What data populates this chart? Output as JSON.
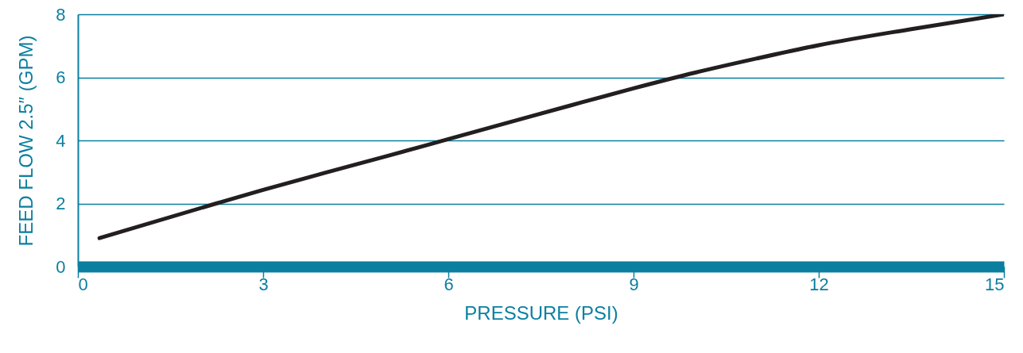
{
  "chart_data": {
    "type": "line",
    "xlabel": "PRESSURE (PSI)",
    "ylabel": "FEED FLOW 2.5″ (GPM)",
    "x": [
      0.35,
      2.24,
      3,
      4,
      5,
      6,
      7,
      8,
      9,
      10,
      11,
      12,
      13.5,
      15
    ],
    "series": [
      {
        "color": "#231f20",
        "values": [
          0.9,
          2,
          2.43,
          2.97,
          3.5,
          4.04,
          4.58,
          5.12,
          5.65,
          6.15,
          6.6,
          7.02,
          7.53,
          8
        ]
      }
    ],
    "xlim": [
      0,
      15
    ],
    "xticks": [
      0,
      3,
      6,
      9,
      12,
      15
    ],
    "ylim": [
      0,
      8
    ],
    "yticks": [
      0,
      2,
      4,
      6,
      8
    ],
    "grid": "y"
  }
}
